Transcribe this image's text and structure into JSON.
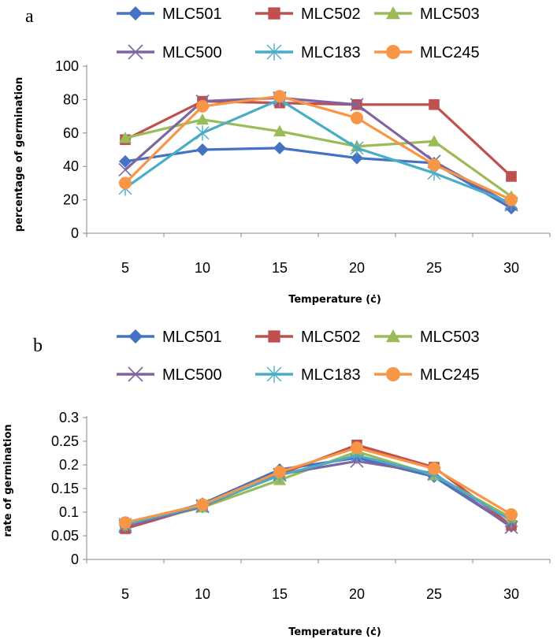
{
  "chart_data": [
    {
      "panel": "a",
      "type": "line",
      "xlabel": "Temperature (ċ)",
      "ylabel": "percentage of germination",
      "x": [
        5,
        10,
        15,
        20,
        25,
        30
      ],
      "ylim": [
        0,
        100
      ],
      "yticks": [
        "0",
        "20",
        "40",
        "60",
        "80",
        "100"
      ],
      "grid": false,
      "legend": "top",
      "series": [
        {
          "name": "MLC501",
          "color": "#4472c4",
          "marker": "diamond",
          "values": [
            43,
            50,
            51,
            45,
            42,
            15
          ]
        },
        {
          "name": "MLC502",
          "color": "#c0504d",
          "marker": "square",
          "values": [
            56,
            79,
            78,
            77,
            77,
            34
          ]
        },
        {
          "name": "MLC503",
          "color": "#9bbb59",
          "marker": "triangle",
          "values": [
            57,
            68,
            61,
            52,
            55,
            22
          ]
        },
        {
          "name": "MLC500",
          "color": "#8064a2",
          "marker": "x",
          "values": [
            38,
            79,
            81,
            77,
            43,
            17
          ]
        },
        {
          "name": "MLC183",
          "color": "#4bacc6",
          "marker": "star",
          "values": [
            27,
            60,
            80,
            51,
            36,
            18
          ]
        },
        {
          "name": "MLC245",
          "color": "#f79646",
          "marker": "circle",
          "values": [
            30,
            76,
            82,
            69,
            41,
            20
          ]
        }
      ]
    },
    {
      "panel": "b",
      "type": "line",
      "xlabel": "Temperature (ċ)",
      "ylabel": "rate of germination",
      "x": [
        5,
        10,
        15,
        20,
        25,
        30
      ],
      "ylim": [
        0,
        0.3
      ],
      "yticks": [
        "0",
        "0.05",
        "0.1",
        "0.15",
        "0.2",
        "0.25",
        "0.3"
      ],
      "grid": false,
      "legend": "top",
      "series": [
        {
          "name": "MLC501",
          "color": "#4472c4",
          "marker": "diamond",
          "values": [
            0.072,
            0.118,
            0.19,
            0.215,
            0.175,
            0.07
          ]
        },
        {
          "name": "MLC502",
          "color": "#c0504d",
          "marker": "square",
          "values": [
            0.065,
            0.113,
            0.18,
            0.242,
            0.195,
            0.072
          ]
        },
        {
          "name": "MLC503",
          "color": "#9bbb59",
          "marker": "triangle",
          "values": [
            0.072,
            0.11,
            0.168,
            0.228,
            0.178,
            0.088
          ]
        },
        {
          "name": "MLC500",
          "color": "#8064a2",
          "marker": "x",
          "values": [
            0.07,
            0.112,
            0.18,
            0.208,
            0.182,
            0.068
          ]
        },
        {
          "name": "MLC183",
          "color": "#4bacc6",
          "marker": "star",
          "values": [
            0.074,
            0.114,
            0.178,
            0.22,
            0.18,
            0.082
          ]
        },
        {
          "name": "MLC245",
          "color": "#f79646",
          "marker": "circle",
          "values": [
            0.078,
            0.116,
            0.185,
            0.236,
            0.192,
            0.095
          ]
        }
      ]
    }
  ]
}
